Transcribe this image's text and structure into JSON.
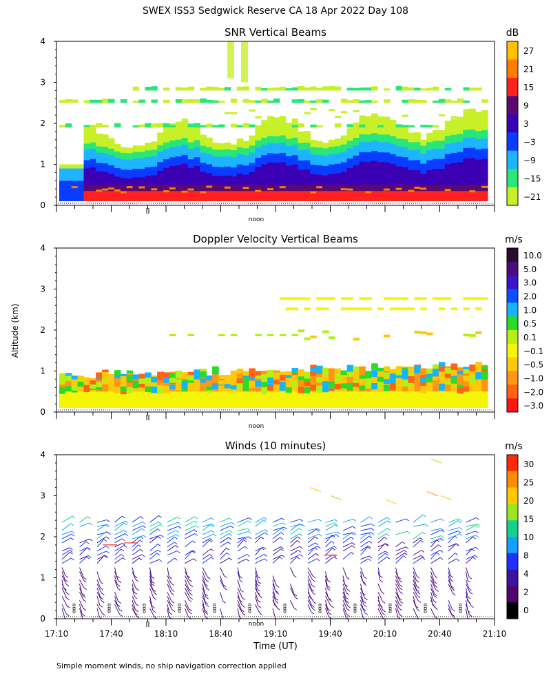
{
  "figure": {
    "title": "SWEX ISS3 Sedgwick Reserve CA  18 Apr 2022 Day 108",
    "y_axis_label": "Altitude (km)",
    "x_axis_label": "Time (UT)",
    "noon_label": "noon",
    "footnote": "Simple moment winds, no ship navigation correction applied"
  },
  "chart_data": [
    {
      "type": "heatmap",
      "title": "SNR Vertical Beams",
      "units": "dB",
      "ylim": [
        0,
        4
      ],
      "yticks": [
        "0",
        "1",
        "2",
        "3",
        "4"
      ],
      "colorbar": {
        "labels": [
          "27",
          "21",
          "15",
          "9",
          "3",
          "−3",
          "−9",
          "−15",
          "−21"
        ],
        "colors": [
          "#ffc000",
          "#ff7d00",
          "#ff2020",
          "#5a0a6e",
          "#3c00b4",
          "#0a3cff",
          "#1eb4ff",
          "#28e678",
          "#c8f028"
        ]
      }
    },
    {
      "type": "heatmap",
      "title": "Doppler Velocity Vertical Beams",
      "units": "m/s",
      "ylim": [
        0,
        4
      ],
      "yticks": [
        "0",
        "1",
        "2",
        "3",
        "4"
      ],
      "colorbar": {
        "labels": [
          "10.0",
          "5.0",
          "3.0",
          "2.0",
          "1.0",
          "0.5",
          "0.1",
          "−0.1",
          "−0.5",
          "−1.0",
          "−2.0",
          "−3.0"
        ],
        "colors": [
          "#2a0a30",
          "#4a0a80",
          "#3a14c8",
          "#0a50ff",
          "#14b4ff",
          "#28dc28",
          "#b4f014",
          "#f5f50a",
          "#ffc80a",
          "#ff9614",
          "#ff6414",
          "#ff1414"
        ]
      }
    },
    {
      "type": "wind_barbs",
      "title": "Winds (10 minutes)",
      "units": "m/s",
      "ylim": [
        0,
        4
      ],
      "yticks": [
        "0",
        "1",
        "2",
        "3",
        "4"
      ],
      "x_tick_labels": [
        "17:10",
        "17:40",
        "18:10",
        "18:40",
        "19:10",
        "19:40",
        "20:10",
        "20:40",
        "21:10"
      ],
      "colorbar": {
        "labels": [
          "30",
          "25",
          "20",
          "15",
          "10",
          "8",
          "4",
          "2",
          "0"
        ],
        "colors": [
          "#ff2a00",
          "#ff8c00",
          "#ffc800",
          "#9be61e",
          "#14d28c",
          "#14a0ff",
          "#1e32ff",
          "#3c14a0",
          "#50066e",
          "#000000"
        ]
      }
    }
  ]
}
